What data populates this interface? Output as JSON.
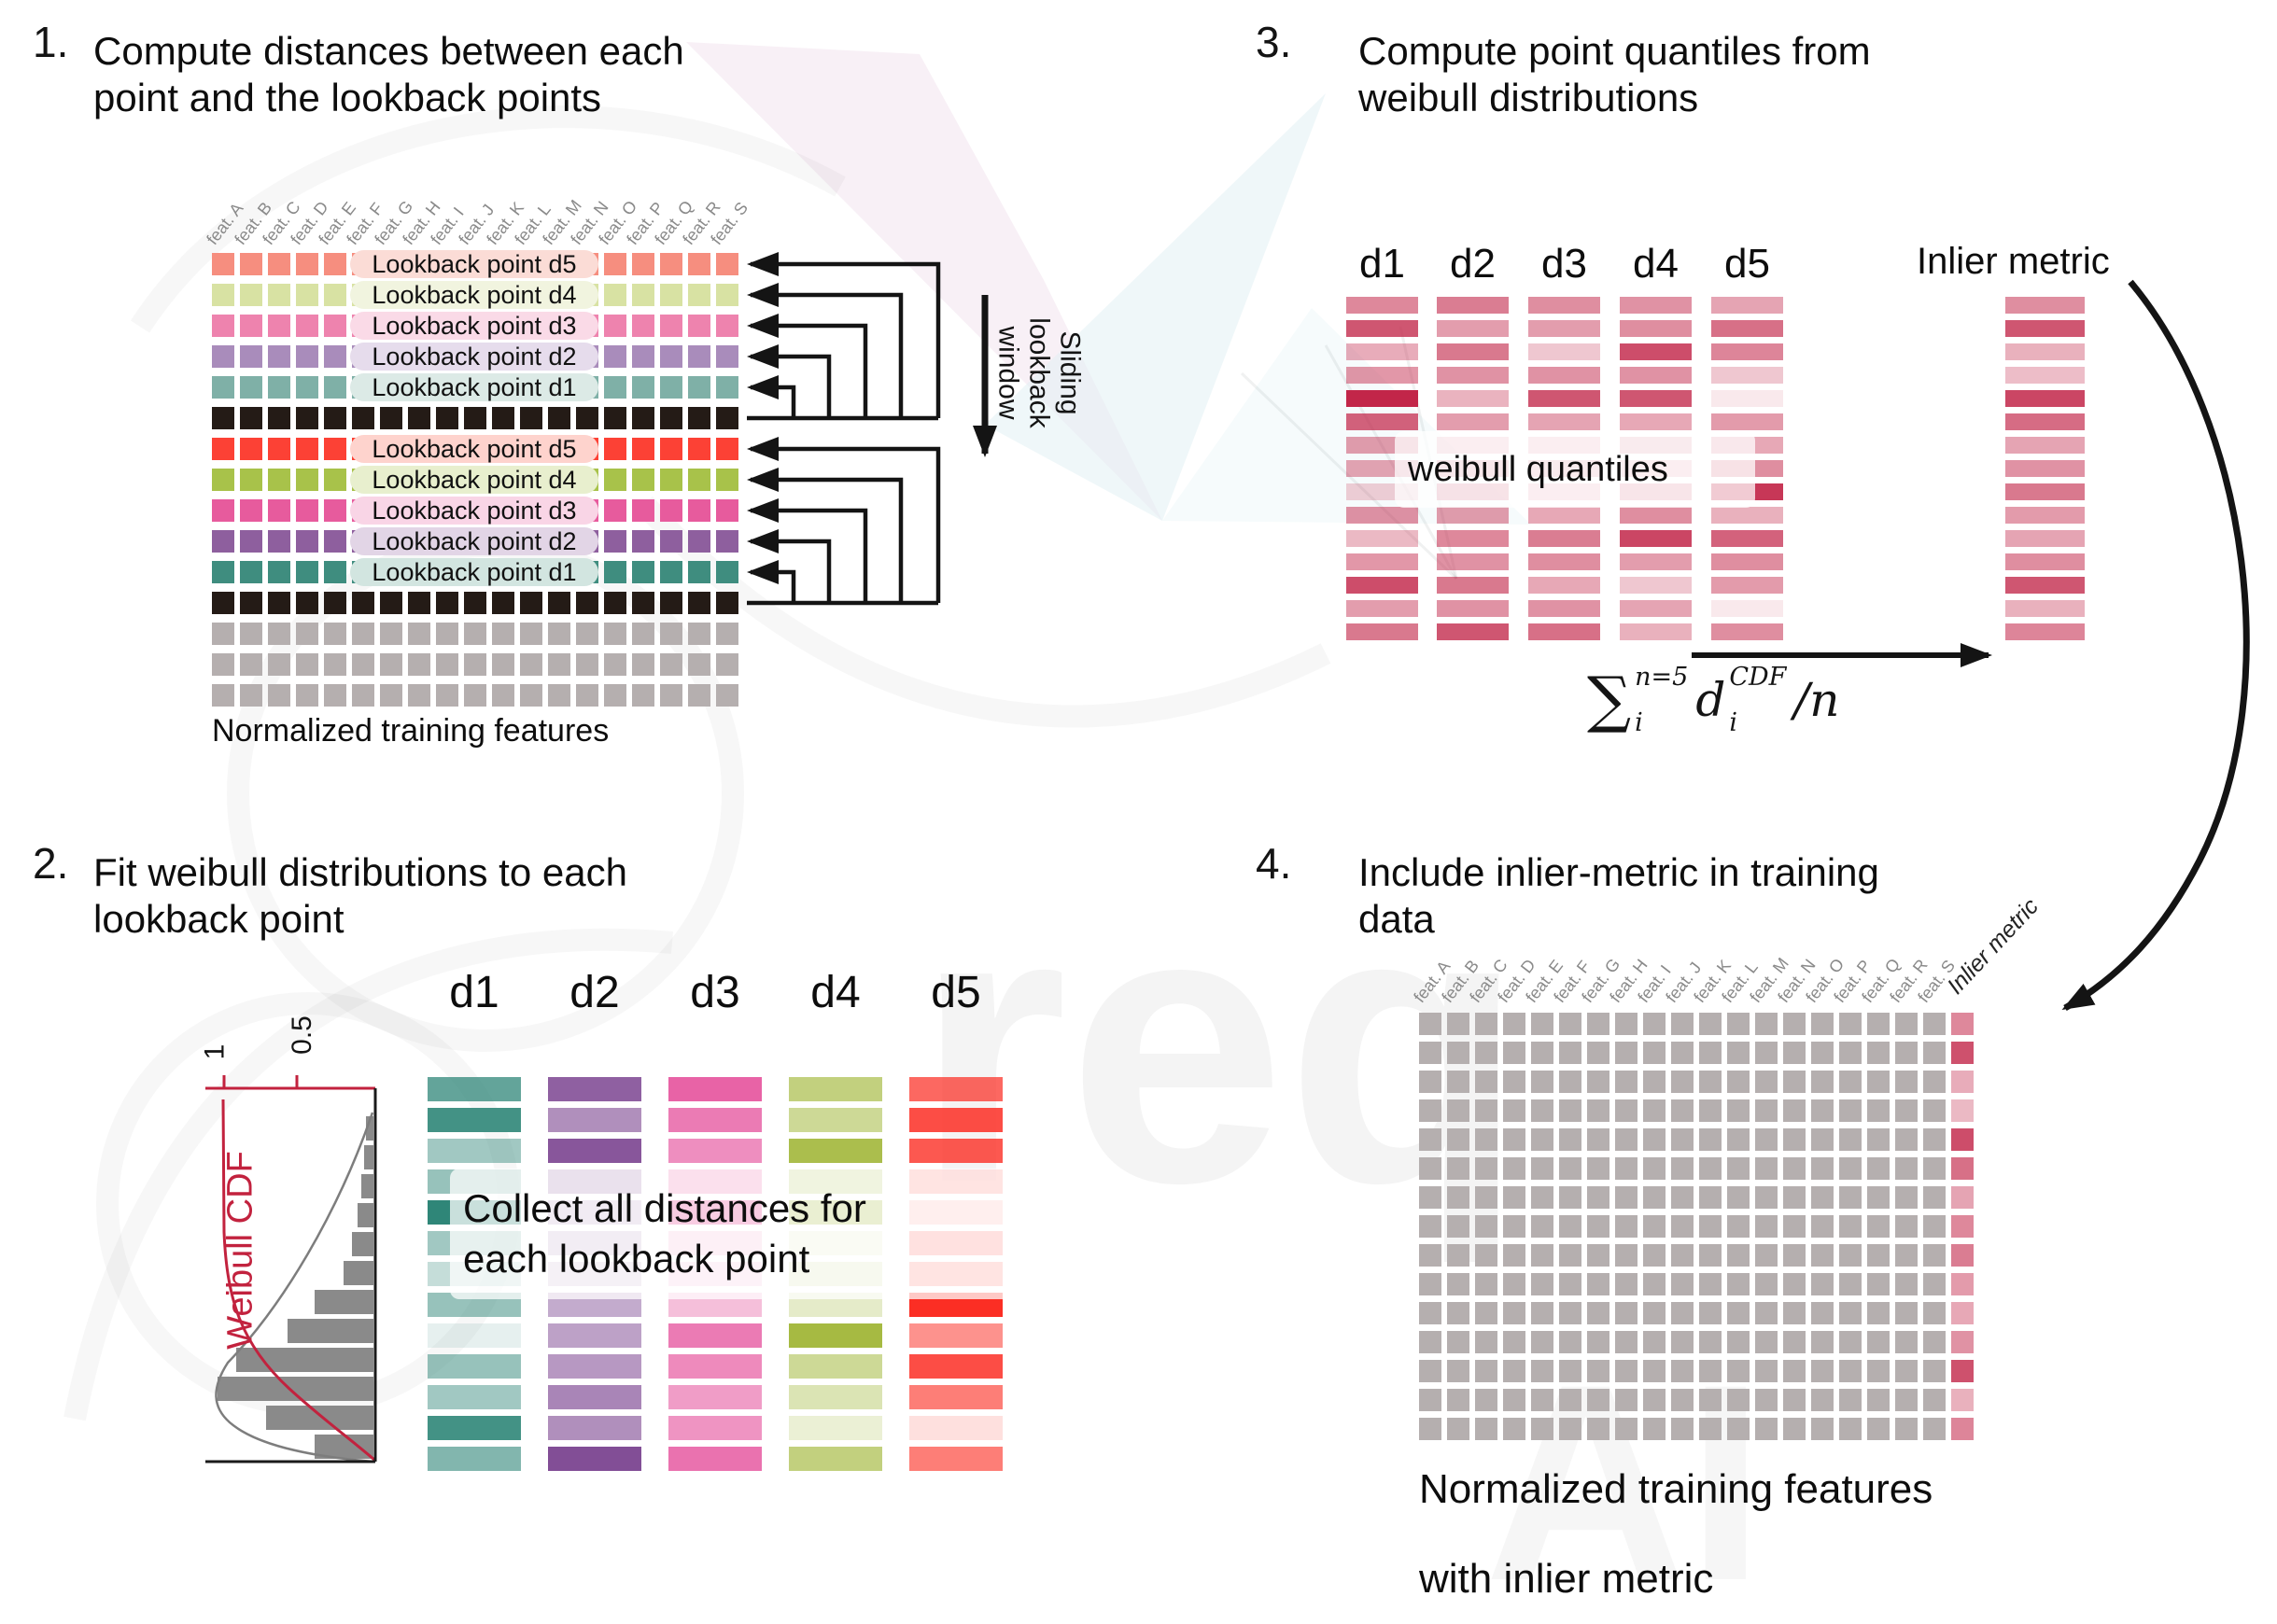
{
  "watermark": {
    "text_req": "req",
    "text_ai": "AI"
  },
  "palette": {
    "arrow_black": "#141414",
    "feature_label_gray": "#8a8a8a",
    "crimson": "#c22649",
    "weibull_red": "#c2223e",
    "hist_gray": "#8a8a8a",
    "grid_gray": "#b5afaf"
  },
  "step1": {
    "number": "1.",
    "title": "Compute distances between each\npoint and the lookback points",
    "caption": "Normalized training features",
    "sliding_label": "Sliding\nlookback\nwindow",
    "features": [
      "feat. A",
      "feat. B",
      "feat. C",
      "feat. D",
      "feat. E",
      "feat. F",
      "feat. G",
      "feat. H",
      "feat. I",
      "feat. J",
      "feat. K",
      "feat. L",
      "feat. M",
      "feat. N",
      "feat. O",
      "feat. P",
      "feat. Q",
      "feat. R",
      "feat. S"
    ],
    "rows": [
      {
        "label": "Lookback point d5",
        "color": "#F68E7F",
        "pill": "#FBDCD6"
      },
      {
        "label": "Lookback point d4",
        "color": "#D8E2A3",
        "pill": "#F1F4DF"
      },
      {
        "label": "Lookback point d3",
        "color": "#EE83AE",
        "pill": "#FADAE7"
      },
      {
        "label": "Lookback point d2",
        "color": "#A98CBB",
        "pill": "#E6DCEC"
      },
      {
        "label": "Lookback point d1",
        "color": "#7FB0A7",
        "pill": "#DCEAE6"
      },
      {
        "color": "#241B16"
      },
      {
        "label": "Lookback point d5",
        "color": "#FC4135",
        "pill": "#FED3CD"
      },
      {
        "label": "Lookback point d4",
        "color": "#A8C24A",
        "pill": "#E8EFCE"
      },
      {
        "label": "Lookback point d3",
        "color": "#E75B9D",
        "pill": "#F9D5E6"
      },
      {
        "label": "Lookback point d2",
        "color": "#8E5F9E",
        "pill": "#E2D5E6"
      },
      {
        "label": "Lookback point d1",
        "color": "#3F8D7F",
        "pill": "#D2E5E0"
      },
      {
        "color": "#241B16"
      },
      {
        "color": "#B5AFAF"
      },
      {
        "color": "#B5AFAF"
      },
      {
        "color": "#B5AFAF"
      }
    ]
  },
  "step2": {
    "number": "2.",
    "title": "Fit weibull distributions to each\nlookback point",
    "overlay": "Collect all distances for\neach lookback point",
    "chart": {
      "ylabel": "Weibull CDF",
      "ticks": [
        "1",
        "0.5"
      ],
      "hist_lengths": [
        8,
        10,
        13,
        17,
        23,
        32,
        63,
        92,
        147,
        167,
        115,
        63
      ],
      "cdf_color": "#c2223e",
      "bar_color": "#8a8a8a",
      "axis_color": "#1a1a1a"
    },
    "columns": [
      {
        "name": "d1",
        "color": "#2F8678",
        "bars": [
          0.75,
          0.9,
          0.45,
          0.5,
          1.0,
          0.45,
          0.28,
          0.5,
          0.12,
          0.5,
          0.45,
          0.9,
          0.6
        ]
      },
      {
        "name": "d2",
        "color": "#7B4490",
        "bars": [
          0.85,
          0.6,
          0.9,
          0.62,
          0.42,
          0.38,
          0.3,
          0.45,
          0.5,
          0.55,
          0.65,
          0.6,
          0.95
        ]
      },
      {
        "name": "d3",
        "color": "#E23C90",
        "bars": [
          0.8,
          0.68,
          0.58,
          0.62,
          1.0,
          0.3,
          0.26,
          0.33,
          0.68,
          0.6,
          0.5,
          0.55,
          0.72
        ]
      },
      {
        "name": "d4",
        "color": "#9CB32E",
        "bars": [
          0.62,
          0.5,
          0.85,
          0.58,
          0.82,
          0.2,
          0.3,
          0.26,
          0.9,
          0.5,
          0.36,
          0.2,
          0.62
        ]
      },
      {
        "name": "d5",
        "color": "#FB2E24",
        "bars": [
          0.72,
          0.85,
          0.8,
          0.5,
          0.3,
          0.55,
          0.5,
          1.0,
          0.52,
          0.85,
          0.62,
          0.15,
          0.62
        ]
      }
    ]
  },
  "step3": {
    "number": "3.",
    "title": "Compute point quantiles from\nweibull distributions",
    "overlay": "weibull quantiles",
    "base_color": "#C22649",
    "columns": [
      {
        "name": "d1",
        "bars": [
          0.55,
          0.78,
          0.38,
          0.48,
          1.0,
          0.72,
          0.45,
          0.42,
          0.22,
          0.5,
          0.32,
          0.48,
          0.82,
          0.45,
          0.62
        ]
      },
      {
        "name": "d2",
        "bars": [
          0.6,
          0.45,
          0.62,
          0.5,
          0.35,
          0.45,
          0.3,
          0.42,
          0.5,
          0.45,
          0.55,
          0.5,
          0.62,
          0.5,
          0.78
        ]
      },
      {
        "name": "d3",
        "bars": [
          0.52,
          0.45,
          0.26,
          0.5,
          0.78,
          0.42,
          0.3,
          0.36,
          0.3,
          0.4,
          0.6,
          0.52,
          0.4,
          0.5,
          0.66
        ]
      },
      {
        "name": "d4",
        "bars": [
          0.5,
          0.52,
          0.82,
          0.5,
          0.78,
          0.4,
          0.36,
          0.3,
          0.46,
          0.52,
          0.85,
          0.45,
          0.26,
          0.42,
          0.36
        ]
      },
      {
        "name": "d5",
        "bars": [
          0.42,
          0.66,
          0.56,
          0.26,
          0.1,
          0.46,
          0.4,
          0.52,
          0.92,
          0.36,
          0.72,
          0.52,
          0.46,
          0.1,
          0.52
        ]
      }
    ],
    "inlier": {
      "label": "Inlier metric",
      "bars": [
        0.52,
        0.78,
        0.36,
        0.3,
        0.85,
        0.68,
        0.42,
        0.5,
        0.62,
        0.46,
        0.42,
        0.52,
        0.78,
        0.36,
        0.56
      ]
    },
    "formula": {
      "sum": "∑",
      "sup": "n=5",
      "sub": "i",
      "var": "d",
      "var_sup": "CDF",
      "var_sub": "i",
      "divisor": "/n"
    }
  },
  "step4": {
    "number": "4.",
    "title": "Include inlier-metric in training\ndata",
    "caption": "Normalized training features\nwith inlier metric",
    "inlier_label": "Inlier metric",
    "features": [
      "feat. A",
      "feat. B",
      "feat. C",
      "feat. D",
      "feat. E",
      "feat. F",
      "feat. G",
      "feat. H",
      "feat. I",
      "feat. J",
      "feat. K",
      "feat. L",
      "feat. M",
      "feat. N",
      "feat. O",
      "feat. P",
      "feat. Q",
      "feat. R",
      "feat. S"
    ],
    "grid": {
      "rows": 15,
      "cols": 19,
      "cell_color": "#B5AFAF"
    },
    "inlier_bars": [
      0.55,
      0.8,
      0.38,
      0.32,
      0.82,
      0.66,
      0.42,
      0.55,
      0.6,
      0.46,
      0.4,
      0.5,
      0.8,
      0.36,
      0.56
    ]
  }
}
